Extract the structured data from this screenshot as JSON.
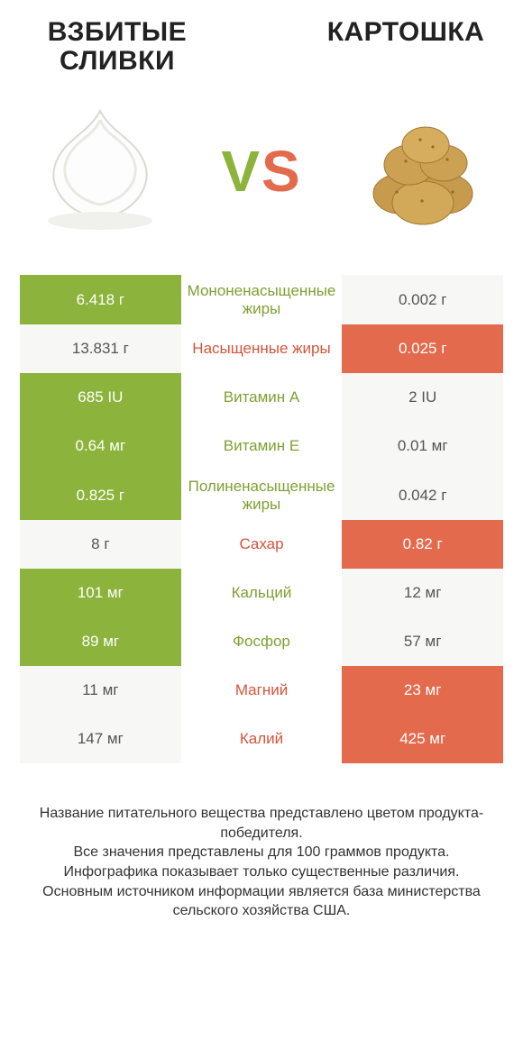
{
  "header": {
    "left_title": "ВЗБИТЫЕ СЛИВКИ",
    "right_title": "КАРТОШКА",
    "vs_left": "V",
    "vs_right": "S"
  },
  "colors": {
    "green": "#8cb33b",
    "orange": "#e46a4d",
    "text_green": "#7ea032",
    "text_orange": "#d6543a",
    "offwhite": "#f7f7f5",
    "background": "#ffffff"
  },
  "rows": [
    {
      "nutrient": "Мононенасыщенные жиры",
      "left": "6.418 г",
      "right": "0.002 г",
      "winner": "left"
    },
    {
      "nutrient": "Насыщенные жиры",
      "left": "13.831 г",
      "right": "0.025 г",
      "winner": "right"
    },
    {
      "nutrient": "Витамин А",
      "left": "685 IU",
      "right": "2 IU",
      "winner": "left"
    },
    {
      "nutrient": "Витамин Е",
      "left": "0.64 мг",
      "right": "0.01 мг",
      "winner": "left"
    },
    {
      "nutrient": "Полиненасыщенные жиры",
      "left": "0.825 г",
      "right": "0.042 г",
      "winner": "left"
    },
    {
      "nutrient": "Сахар",
      "left": "8 г",
      "right": "0.82 г",
      "winner": "right"
    },
    {
      "nutrient": "Кальций",
      "left": "101 мг",
      "right": "12 мг",
      "winner": "left"
    },
    {
      "nutrient": "Фосфор",
      "left": "89 мг",
      "right": "57 мг",
      "winner": "left"
    },
    {
      "nutrient": "Магний",
      "left": "11 мг",
      "right": "23 мг",
      "winner": "right"
    },
    {
      "nutrient": "Калий",
      "left": "147 мг",
      "right": "425 мг",
      "winner": "right"
    }
  ],
  "footer": {
    "line1": "Название питательного вещества представлено цветом продукта-победителя.",
    "line2": "Все значения представлены для 100 граммов продукта.",
    "line3": "Инфографика показывает только существенные различия.",
    "line4": "Основным источником информации является база министерства сельского хозяйства США."
  }
}
